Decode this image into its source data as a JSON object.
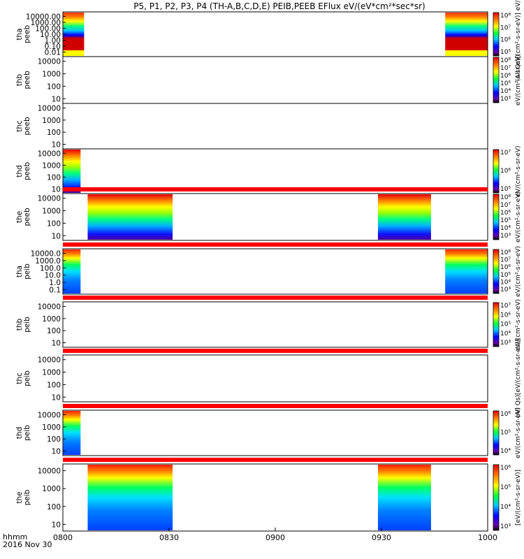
{
  "chart_data": {
    "type": "heatmap",
    "title": "P5, P1, P2, P3, P4 (TH-A,B,C,D,E) PEIB,PEEB EFlux eV/(eV*cm²*sec*sr)",
    "x_range": [
      "0800",
      "1000"
    ],
    "x_ticks": [
      "0800",
      "0830",
      "0900",
      "0930",
      "1000"
    ],
    "x_label_top": "hhmm",
    "x_label_bottom": "2016 Nov 30",
    "colormap": "rainbow",
    "panels": [
      {
        "probe": "tha",
        "species": "peeb",
        "y_ticks": [
          "10000.00",
          "1000.00",
          "100.00",
          "10.00",
          "1.00",
          "0.10",
          "0.01"
        ],
        "coverage": [
          [
            "0800",
            "0806"
          ],
          [
            "0948",
            "1000"
          ]
        ],
        "colorbar_ticks": [
          "10⁸",
          "10⁷",
          "10⁶",
          "10⁵"
        ],
        "colorbar_label": "(All Qs)[(cm²-s-sr-eV)] eV/(eV)",
        "flag_bar": false
      },
      {
        "probe": "thb",
        "species": "peeb",
        "y_ticks": [
          "10000",
          "1000",
          "100",
          "10"
        ],
        "coverage": [],
        "colorbar_ticks": [
          "10⁸",
          "10⁷",
          "10⁶",
          "10⁵",
          "10⁴",
          "10³"
        ],
        "colorbar_label": "eV/(cm²-s-sr-eV)",
        "flag_bar": false
      },
      {
        "probe": "thc",
        "species": "peeb",
        "y_ticks": [
          "10000",
          "1000",
          "100",
          "10"
        ],
        "coverage": [],
        "colorbar_ticks": [],
        "colorbar_label": "",
        "flag_bar": false
      },
      {
        "probe": "thd",
        "species": "peeb",
        "y_ticks": [
          "10000",
          "1000",
          "100",
          "10"
        ],
        "coverage": [
          [
            "0800",
            "0805"
          ]
        ],
        "colorbar_ticks": [
          "10⁷",
          "10⁶",
          "10⁵"
        ],
        "colorbar_label": "eV/(cm²-s-sr-eV)",
        "flag_bar": false
      },
      {
        "probe": "the",
        "species": "peeb",
        "y_ticks": [
          "10000",
          "1000",
          "100",
          "10"
        ],
        "coverage": [
          [
            "0807",
            "0831"
          ],
          [
            "0929",
            "0944"
          ]
        ],
        "colorbar_ticks": [
          "10⁸",
          "10⁷",
          "10⁶",
          "10⁵",
          "10⁴",
          "10³"
        ],
        "colorbar_label": "eV/(cm²-s-sr-eV)",
        "flag_bar": true
      },
      {
        "probe": "tha",
        "species": "peib",
        "y_ticks": [
          "10000.0",
          "1000.0",
          "100.0",
          "10.0",
          "1.0",
          "0.1"
        ],
        "coverage": [
          [
            "0800",
            "0805"
          ],
          [
            "0948",
            "1000"
          ]
        ],
        "colorbar_ticks": [
          "10⁸",
          "10⁷",
          "10⁶",
          "10⁵",
          "10⁴",
          "10³"
        ],
        "colorbar_label": "eV/(cm²-s-sr-eV)",
        "flag_bar": true
      },
      {
        "probe": "thb",
        "species": "peib",
        "y_ticks": [
          "10000",
          "1000",
          "100",
          "10"
        ],
        "coverage": [],
        "colorbar_ticks": [
          "10⁷",
          "10⁶",
          "10⁵",
          "10⁴",
          "10³"
        ],
        "colorbar_label": "eV/(cm²-s-sr-eV)",
        "flag_bar": true
      },
      {
        "probe": "thc",
        "species": "peib",
        "y_ticks": [
          "10000",
          "1000",
          "100",
          "10"
        ],
        "coverage": [],
        "colorbar_ticks": [],
        "colorbar_label": "(All Qs)[eV/(cm²-s-sr-eV)]",
        "flag_bar": true
      },
      {
        "probe": "thd",
        "species": "peib",
        "y_ticks": [
          "10000",
          "1000",
          "100",
          "10"
        ],
        "coverage": [
          [
            "0800",
            "0805"
          ]
        ],
        "colorbar_ticks": [
          "10⁶",
          "10⁵",
          "10⁴"
        ],
        "colorbar_label": "eV/(cm²-s-sr-eV)",
        "flag_bar": true
      },
      {
        "probe": "the",
        "species": "peib",
        "y_ticks": [
          "10000",
          "1000",
          "100",
          "10"
        ],
        "coverage": [
          [
            "0807",
            "0831"
          ],
          [
            "0929",
            "0944"
          ]
        ],
        "colorbar_ticks": [
          "10⁶",
          "10⁵",
          "10⁴",
          "10³"
        ],
        "colorbar_label": "[eV/(cm²-s-sr-eV)]",
        "flag_bar": true
      }
    ]
  }
}
